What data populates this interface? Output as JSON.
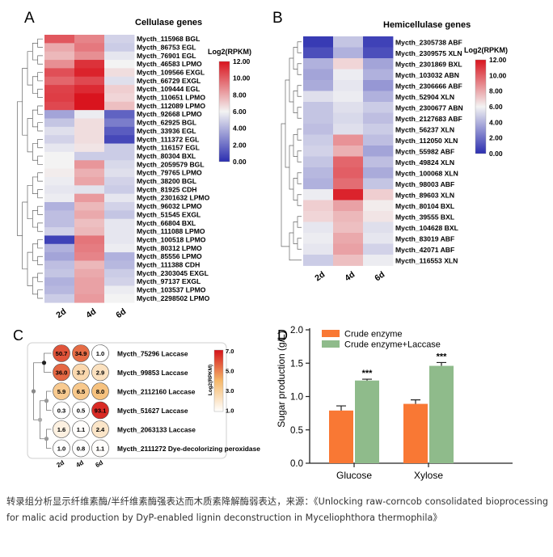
{
  "caption": "转录组分析显示纤维素酶/半纤维素酶强表达而木质素降解酶弱表达，来源：《Unlocking raw-corncob consolidated bioprocessing for malic acid production by DyP-enabled lignin deconstruction in Myceliophthora thermophila》",
  "chart_data": [
    {
      "panel": "A",
      "type": "heatmap",
      "title": "Cellulase genes",
      "columns": [
        "2d",
        "4d",
        "6d"
      ],
      "legend_title": "Log2(RPKM)",
      "scale_ticks": [
        "12.00",
        "10.00",
        "8.00",
        "6.00",
        "4.00",
        "2.00",
        "0.00"
      ],
      "range": [
        0,
        12
      ],
      "colors": {
        "low": "#2b2eb0",
        "mid": "#f3f3f3",
        "high": "#d9141e"
      },
      "rows": [
        {
          "label": "Mycth_115968 BGL",
          "values": [
            10.2,
            9.0,
            5.0
          ]
        },
        {
          "label": "Mycth_86753 EGL",
          "values": [
            8.0,
            9.3,
            4.8
          ]
        },
        {
          "label": "Mycth_76901 EGL",
          "values": [
            7.6,
            8.7,
            5.6
          ]
        },
        {
          "label": "Mycth_46583 LPMO",
          "values": [
            8.7,
            11.2,
            6.0
          ]
        },
        {
          "label": "Mycth_109566 EXGL",
          "values": [
            10.4,
            11.6,
            6.6
          ]
        },
        {
          "label": "Mycth_66729 EXGL",
          "values": [
            9.8,
            10.6,
            5.4
          ]
        },
        {
          "label": "Mycth_109444 EGL",
          "values": [
            10.8,
            11.4,
            7.0
          ]
        },
        {
          "label": "Mycth_110651 LPMO",
          "values": [
            10.9,
            12.0,
            6.8
          ]
        },
        {
          "label": "Mycth_112089 LPMO",
          "values": [
            10.6,
            12.0,
            7.4
          ]
        },
        {
          "label": "Mycth_92668 LPMO",
          "values": [
            3.6,
            5.8,
            1.6
          ]
        },
        {
          "label": "Mycth_62925 BGL",
          "values": [
            4.6,
            6.6,
            2.4
          ]
        },
        {
          "label": "Mycth_33936 EGL",
          "values": [
            5.4,
            6.6,
            1.4
          ]
        },
        {
          "label": "Mycth_111372 EGL",
          "values": [
            5.0,
            6.6,
            0.8
          ]
        },
        {
          "label": "Mycth_116157 EGL",
          "values": [
            5.6,
            6.4,
            4.8
          ]
        },
        {
          "label": "Mycth_80304 BXL",
          "values": [
            6.0,
            4.8,
            4.8
          ]
        },
        {
          "label": "Mycth_2059579 BGL",
          "values": [
            6.0,
            8.5,
            5.2
          ]
        },
        {
          "label": "Mycth_79765 LPMO",
          "values": [
            6.2,
            7.8,
            5.4
          ]
        },
        {
          "label": "Mycth_38200 BGL",
          "values": [
            5.8,
            8.1,
            5.0
          ]
        },
        {
          "label": "Mycth_81925 CDH",
          "values": [
            5.6,
            5.5,
            4.8
          ]
        },
        {
          "label": "Mycth_2301632 LPMO",
          "values": [
            5.8,
            8.4,
            5.6
          ]
        },
        {
          "label": "Mycth_96032 LPMO",
          "values": [
            4.0,
            7.6,
            5.0
          ]
        },
        {
          "label": "Mycth_51545 EXGL",
          "values": [
            4.4,
            8.0,
            4.6
          ]
        },
        {
          "label": "Mycth_66804 BXL",
          "values": [
            4.4,
            7.4,
            5.6
          ]
        },
        {
          "label": "Mycth_111088 LPMO",
          "values": [
            5.0,
            7.6,
            5.6
          ]
        },
        {
          "label": "Mycth_100518 LPMO",
          "values": [
            0.6,
            9.4,
            5.6
          ]
        },
        {
          "label": "Mycth_80312 LPMO",
          "values": [
            4.0,
            9.2,
            5.8
          ]
        },
        {
          "label": "Mycth_85556 LPMO",
          "values": [
            3.6,
            9.0,
            4.0
          ]
        },
        {
          "label": "Mycth_111388 CDH",
          "values": [
            4.4,
            7.6,
            4.2
          ]
        },
        {
          "label": "Mycth_2303045 EXGL",
          "values": [
            4.6,
            8.0,
            4.8
          ]
        },
        {
          "label": "Mycth_97137 EXGL",
          "values": [
            4.0,
            8.2,
            5.0
          ]
        },
        {
          "label": "Mycth_103537 LPMO",
          "values": [
            4.2,
            8.2,
            5.8
          ]
        },
        {
          "label": "Mycth_2298502 LPMO",
          "values": [
            4.8,
            8.4,
            6.0
          ]
        }
      ]
    },
    {
      "panel": "B",
      "type": "heatmap",
      "title": "Hemicellulase genes",
      "columns": [
        "2d",
        "4d",
        "6d"
      ],
      "legend_title": "Log2(RPKM)",
      "scale_ticks": [
        "12.00",
        "10.00",
        "8.00",
        "6.00",
        "4.00",
        "2.00",
        "0.00"
      ],
      "range": [
        0,
        12
      ],
      "colors": {
        "low": "#2b2eb0",
        "mid": "#f3f3f3",
        "high": "#d9141e"
      },
      "rows": [
        {
          "label": "Mycth_2305738 ABF",
          "values": [
            0.4,
            4.6,
            0.6
          ]
        },
        {
          "label": "Mycth_2309575 XLN",
          "values": [
            1.0,
            4.0,
            1.0
          ]
        },
        {
          "label": "Mycth_2301869 BXL",
          "values": [
            4.0,
            6.8,
            3.6
          ]
        },
        {
          "label": "Mycth_103032 ABN",
          "values": [
            3.6,
            5.8,
            4.0
          ]
        },
        {
          "label": "Mycth_2306666 ABF",
          "values": [
            3.8,
            5.6,
            3.2
          ]
        },
        {
          "label": "Mycth_52904 XLN",
          "values": [
            5.4,
            5.8,
            4.0
          ]
        },
        {
          "label": "Mycth_2300677 ABN",
          "values": [
            4.6,
            5.4,
            4.8
          ]
        },
        {
          "label": "Mycth_2127683 ABF",
          "values": [
            4.6,
            5.2,
            4.4
          ]
        },
        {
          "label": "Mycth_56237 XLN",
          "values": [
            4.4,
            5.4,
            4.8
          ]
        },
        {
          "label": "Mycth_112050 XLN",
          "values": [
            4.8,
            8.6,
            4.4
          ]
        },
        {
          "label": "Mycth_55982 ABF",
          "values": [
            5.0,
            7.8,
            3.6
          ]
        },
        {
          "label": "Mycth_49824 XLN",
          "values": [
            4.6,
            9.8,
            4.4
          ]
        },
        {
          "label": "Mycth_100068 XLN",
          "values": [
            4.2,
            10.0,
            3.8
          ]
        },
        {
          "label": "Mycth_98003 ABF",
          "values": [
            4.0,
            9.6,
            4.6
          ]
        },
        {
          "label": "Mycth_89603 XLN",
          "values": [
            5.8,
            11.6,
            7.0
          ]
        },
        {
          "label": "Mycth_80104 BXL",
          "values": [
            7.0,
            8.2,
            6.2
          ]
        },
        {
          "label": "Mycth_39555 BXL",
          "values": [
            6.8,
            7.6,
            6.4
          ]
        },
        {
          "label": "Mycth_104628 BXL",
          "values": [
            5.6,
            7.4,
            5.4
          ]
        },
        {
          "label": "Mycth_83019 ABF",
          "values": [
            5.8,
            8.0,
            5.6
          ]
        },
        {
          "label": "Mycth_42071 ABF",
          "values": [
            5.6,
            8.2,
            5.0
          ]
        },
        {
          "label": "Mycth_116553 XLN",
          "values": [
            4.8,
            7.4,
            5.8
          ]
        }
      ]
    },
    {
      "panel": "C",
      "type": "heatmap",
      "title": "",
      "columns": [
        "2d",
        "4d",
        "6d"
      ],
      "legend_title": "Log2(RPKM)",
      "scale_ticks": [
        "7.0",
        "5.0",
        "3.0",
        "1.0"
      ],
      "range": [
        0,
        7
      ],
      "colors": {
        "low": "#ffffff",
        "mid": "#f5b86a",
        "high": "#d4121a"
      },
      "rows": [
        {
          "label": "Mycth_75296 Laccase",
          "values": [
            "50.7",
            "34.9",
            "1.0"
          ],
          "levels": [
            5.6,
            5.1,
            0.0
          ]
        },
        {
          "label": "Mycth_99853 Laccase",
          "values": [
            "36.0",
            "3.7",
            "2.9"
          ],
          "levels": [
            5.2,
            1.9,
            1.5
          ]
        },
        {
          "label": "Mycth_2112160 Laccase",
          "values": [
            "5.9",
            "6.5",
            "8.0"
          ],
          "levels": [
            2.6,
            2.7,
            3.0
          ]
        },
        {
          "label": "Mycth_51627 Laccase",
          "values": [
            "0.3",
            "0.5",
            "93.1"
          ],
          "levels": [
            0.0,
            0.0,
            6.5
          ]
        },
        {
          "label": "Mycth_2063133 Laccase",
          "values": [
            "1.6",
            "1.1",
            "2.4"
          ],
          "levels": [
            0.7,
            0.1,
            1.3
          ]
        },
        {
          "label": "Mycth_2111272 Dye-decolorizing peroxidase",
          "values": [
            "1.0",
            "0.8",
            "1.1"
          ],
          "levels": [
            0.0,
            0.0,
            0.1
          ]
        }
      ]
    },
    {
      "panel": "D",
      "type": "bar",
      "title": "",
      "categories": [
        "Glucose",
        "Xylose"
      ],
      "ylabel": "Sugar production (g/L)",
      "ylim": [
        0,
        2.0
      ],
      "yticks": [
        "0.0",
        "0.5",
        "1.0",
        "1.5",
        "2.0"
      ],
      "significance": [
        "***",
        "***"
      ],
      "legend_position": "top-left",
      "series": [
        {
          "name": "Crude enzyme",
          "color": "#f97834",
          "values": [
            0.79,
            0.89
          ],
          "errors": [
            0.07,
            0.06
          ]
        },
        {
          "name": "Crude enzyme+Laccase",
          "color": "#8fbb8b",
          "values": [
            1.24,
            1.46
          ],
          "errors": [
            0.02,
            0.05
          ]
        }
      ]
    }
  ],
  "panel_letters": [
    "A",
    "B",
    "C",
    "D"
  ]
}
